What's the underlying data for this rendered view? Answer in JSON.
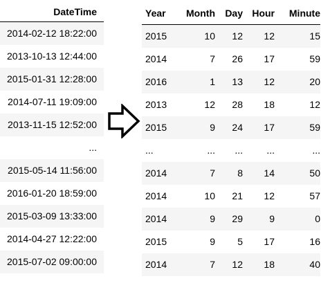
{
  "left_table": {
    "header": "DateTime",
    "rows": [
      "2014-02-12 18:22:00",
      "2013-10-13 12:44:00",
      "2015-01-31 12:28:00",
      "2014-07-11 19:09:00",
      "2013-11-15 12:52:00",
      "...",
      "2015-05-14 11:56:00",
      "2016-01-20 18:59:00",
      "2015-03-09 13:33:00",
      "2014-04-27 12:22:00",
      "2015-07-02 09:00:00"
    ]
  },
  "arrow": {
    "icon": "right-arrow-icon"
  },
  "right_table": {
    "headers": [
      "Year",
      "Month",
      "Day",
      "Hour",
      "Minute"
    ],
    "rows": [
      [
        "2015",
        "10",
        "12",
        "12",
        "15"
      ],
      [
        "2014",
        "7",
        "26",
        "17",
        "59"
      ],
      [
        "2016",
        "1",
        "13",
        "12",
        "20"
      ],
      [
        "2013",
        "12",
        "28",
        "18",
        "12"
      ],
      [
        "2015",
        "9",
        "24",
        "17",
        "59"
      ],
      [
        "...",
        "...",
        "...",
        "...",
        "..."
      ],
      [
        "2014",
        "7",
        "8",
        "14",
        "50"
      ],
      [
        "2014",
        "10",
        "21",
        "12",
        "57"
      ],
      [
        "2014",
        "9",
        "29",
        "9",
        "0"
      ],
      [
        "2015",
        "9",
        "5",
        "17",
        "16"
      ],
      [
        "2014",
        "7",
        "12",
        "18",
        "40"
      ]
    ]
  }
}
